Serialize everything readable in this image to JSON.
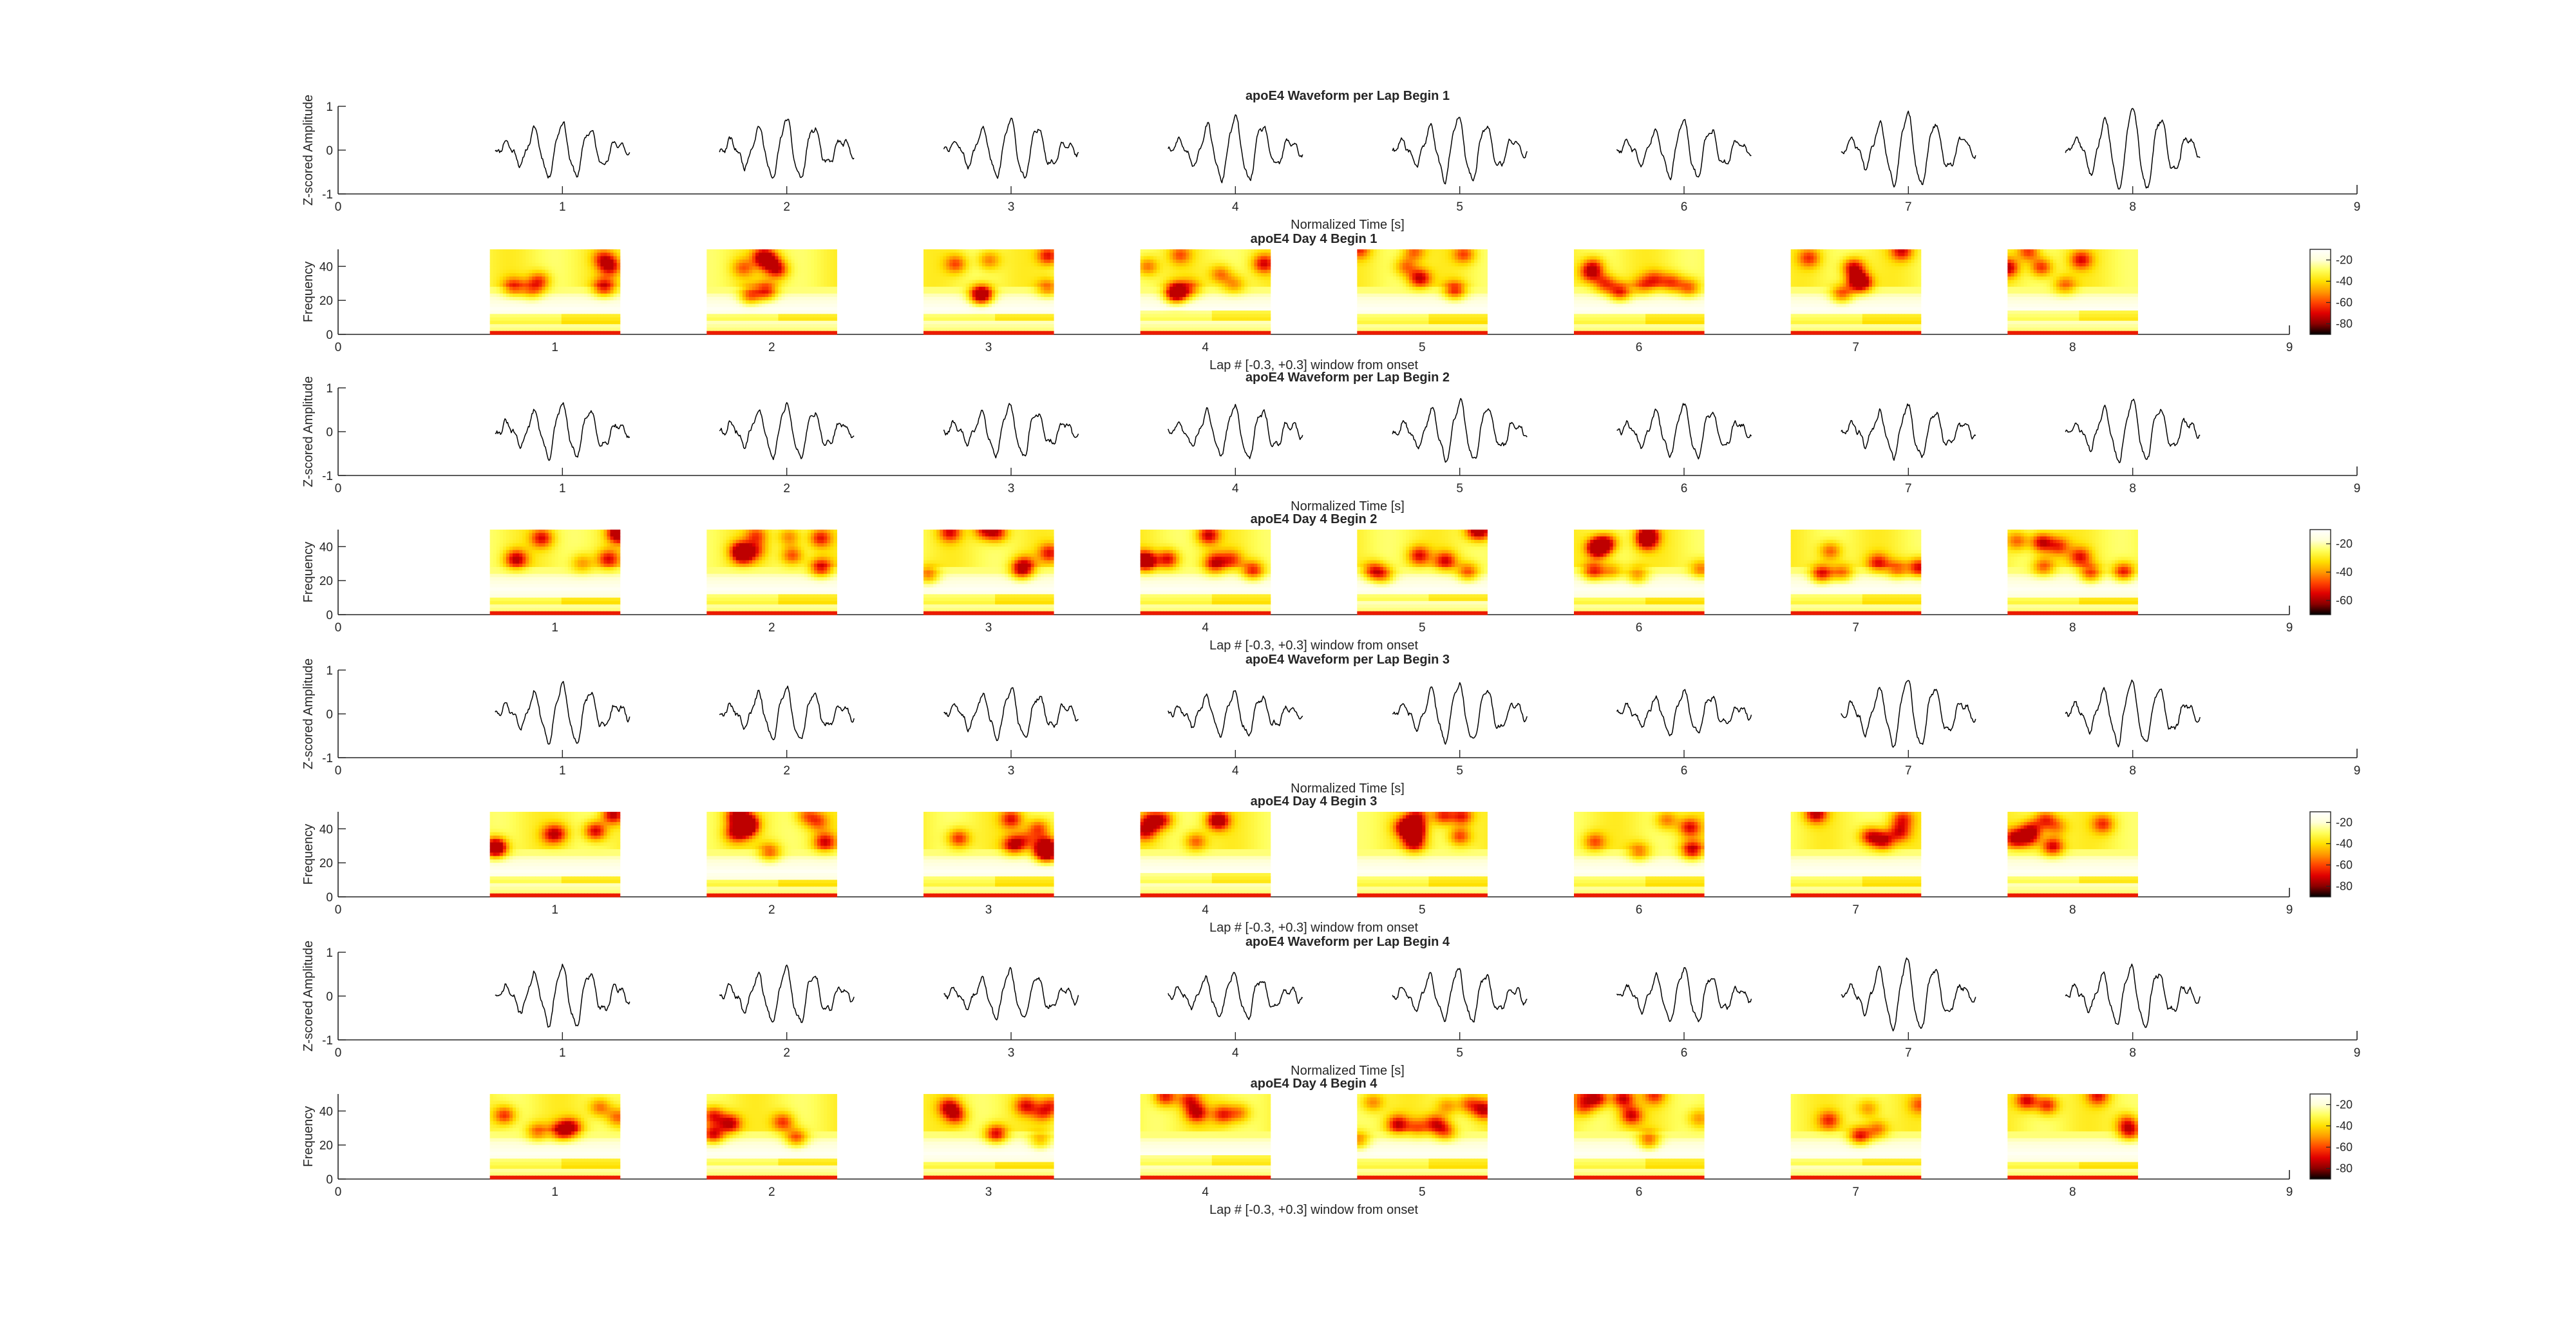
{
  "figure": {
    "background": "#ffffff",
    "axis_color": "#262626",
    "trace_color": "#000000",
    "colormap": "hot",
    "colormap_stops": [
      "#000000",
      "#8b0000",
      "#e00000",
      "#ff4500",
      "#ff9a00",
      "#ffe000",
      "#ffff5a",
      "#ffffd8",
      "#ffffff"
    ]
  },
  "chart_data": [
    {
      "type": "line",
      "title": "apoE4 Waveform per Lap Begin 1",
      "xlabel": "Normalized Time [s]",
      "ylabel": "Z-scored Amplitude",
      "xlim": [
        0,
        9
      ],
      "ylim": [
        -1,
        1
      ],
      "xticks": [
        "0",
        "1",
        "2",
        "3",
        "4",
        "5",
        "6",
        "7",
        "8",
        "9"
      ],
      "yticks": [
        "-1",
        "0",
        "1"
      ],
      "grid": false,
      "laps": [
        1,
        2,
        3,
        4,
        5,
        6,
        7,
        8
      ],
      "lap_window": [
        -0.3,
        0.3
      ],
      "seed": 11,
      "amps": [
        0.62,
        0.68,
        0.66,
        0.72,
        0.72,
        0.65,
        0.82,
        0.95
      ]
    },
    {
      "type": "heatmap",
      "title": "apoE4 Day 4 Begin 1",
      "xlabel": "Lap # [-0.3, +0.3] window from onset",
      "ylabel": "Frequency",
      "xlim": [
        0,
        9
      ],
      "ylim": [
        0,
        50
      ],
      "xticks": [
        "0",
        "1",
        "2",
        "3",
        "4",
        "5",
        "6",
        "7",
        "8",
        "9"
      ],
      "yticks": [
        "0",
        "20",
        "40"
      ],
      "colorbar": {
        "ticks": [
          "-20",
          "-40",
          "-60",
          "-80"
        ],
        "range": [
          -90,
          -10
        ]
      },
      "laps": [
        1,
        2,
        3,
        4,
        5,
        6,
        7,
        8
      ],
      "seed": 21
    },
    {
      "type": "line",
      "title": "apoE4 Waveform per Lap Begin 2",
      "xlabel": "Normalized Time [s]",
      "ylabel": "Z-scored Amplitude",
      "xlim": [
        0,
        9
      ],
      "ylim": [
        -1,
        1
      ],
      "xticks": [
        "0",
        "1",
        "2",
        "3",
        "4",
        "5",
        "6",
        "7",
        "8",
        "9"
      ],
      "yticks": [
        "-1",
        "0",
        "1"
      ],
      "grid": false,
      "laps": [
        1,
        2,
        3,
        4,
        5,
        6,
        7,
        8
      ],
      "lap_window": [
        -0.3,
        0.3
      ],
      "seed": 31,
      "amps": [
        0.6,
        0.62,
        0.55,
        0.6,
        0.68,
        0.6,
        0.58,
        0.7
      ]
    },
    {
      "type": "heatmap",
      "title": "apoE4 Day 4 Begin 2",
      "xlabel": "Lap # [-0.3, +0.3] window from onset",
      "ylabel": "Frequency",
      "xlim": [
        0,
        9
      ],
      "ylim": [
        0,
        50
      ],
      "xticks": [
        "0",
        "1",
        "2",
        "3",
        "4",
        "5",
        "6",
        "7",
        "8",
        "9"
      ],
      "yticks": [
        "0",
        "20",
        "40"
      ],
      "colorbar": {
        "ticks": [
          "-20",
          "-40",
          "-60"
        ],
        "range": [
          -70,
          -10
        ]
      },
      "laps": [
        1,
        2,
        3,
        4,
        5,
        6,
        7,
        8
      ],
      "seed": 41
    },
    {
      "type": "line",
      "title": "apoE4 Waveform per Lap Begin 3",
      "xlabel": "Normalized Time [s]",
      "ylabel": "Z-scored Amplitude",
      "xlim": [
        0,
        9
      ],
      "ylim": [
        -1,
        1
      ],
      "xticks": [
        "0",
        "1",
        "2",
        "3",
        "4",
        "5",
        "6",
        "7",
        "8",
        "9"
      ],
      "yticks": [
        "-1",
        "0",
        "1"
      ],
      "grid": false,
      "laps": [
        1,
        2,
        3,
        4,
        5,
        6,
        7,
        8
      ],
      "lap_window": [
        -0.3,
        0.3
      ],
      "seed": 51,
      "amps": [
        0.65,
        0.6,
        0.55,
        0.5,
        0.68,
        0.5,
        0.8,
        0.72
      ]
    },
    {
      "type": "heatmap",
      "title": "apoE4 Day 4 Begin 3",
      "xlabel": "Lap # [-0.3, +0.3] window from onset",
      "ylabel": "Frequency",
      "xlim": [
        0,
        9
      ],
      "ylim": [
        0,
        50
      ],
      "xticks": [
        "0",
        "1",
        "2",
        "3",
        "4",
        "5",
        "6",
        "7",
        "8",
        "9"
      ],
      "yticks": [
        "0",
        "20",
        "40"
      ],
      "colorbar": {
        "ticks": [
          "-20",
          "-40",
          "-60",
          "-80"
        ],
        "range": [
          -90,
          -10
        ]
      },
      "laps": [
        1,
        2,
        3,
        4,
        5,
        6,
        7,
        8
      ],
      "seed": 61
    },
    {
      "type": "line",
      "title": "apoE4 Waveform per Lap Begin 4",
      "xlabel": "Normalized Time [s]",
      "ylabel": "Z-scored Amplitude",
      "xlim": [
        0,
        9
      ],
      "ylim": [
        -1,
        1
      ],
      "xticks": [
        "0",
        "1",
        "2",
        "3",
        "4",
        "5",
        "6",
        "7",
        "8",
        "9"
      ],
      "yticks": [
        "-1",
        "0",
        "1"
      ],
      "grid": false,
      "laps": [
        1,
        2,
        3,
        4,
        5,
        6,
        7,
        8
      ],
      "lap_window": [
        -0.3,
        0.3
      ],
      "seed": 71,
      "amps": [
        0.68,
        0.62,
        0.55,
        0.5,
        0.6,
        0.6,
        0.8,
        0.68
      ]
    },
    {
      "type": "heatmap",
      "title": "apoE4 Day 4 Begin 4",
      "xlabel": "Lap # [-0.3, +0.3] window from onset",
      "ylabel": "Frequency",
      "xlim": [
        0,
        9
      ],
      "ylim": [
        0,
        50
      ],
      "xticks": [
        "0",
        "1",
        "2",
        "3",
        "4",
        "5",
        "6",
        "7",
        "8",
        "9"
      ],
      "yticks": [
        "0",
        "20",
        "40"
      ],
      "colorbar": {
        "ticks": [
          "-20",
          "-40",
          "-60",
          "-80"
        ],
        "range": [
          -90,
          -10
        ]
      },
      "laps": [
        1,
        2,
        3,
        4,
        5,
        6,
        7,
        8
      ],
      "seed": 81
    }
  ]
}
